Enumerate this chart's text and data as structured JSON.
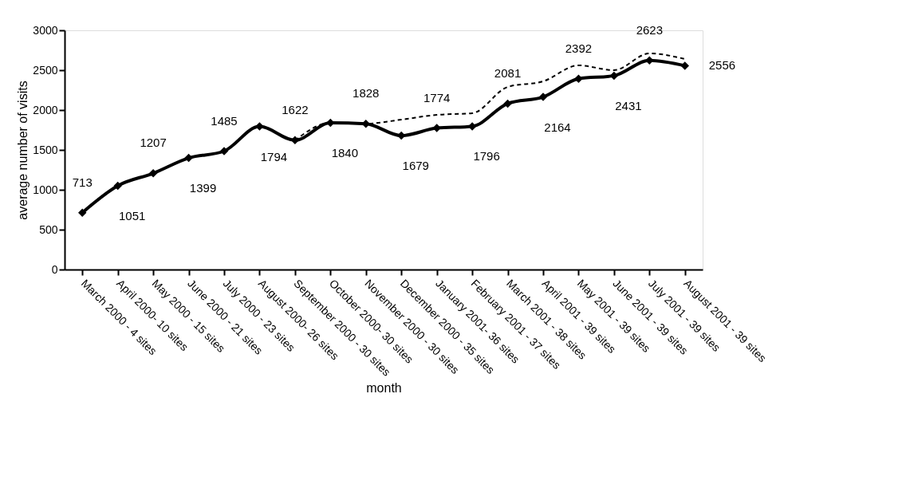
{
  "chart_data": {
    "type": "line",
    "xlabel": "month",
    "ylabel": "average number of visits",
    "categories": [
      "March 2000 - 4 sites",
      "April 2000- 10 sites",
      "May 2000 - 15 sites",
      "June 2000 - 21 sites",
      "July 2000 - 23 sites",
      "August 2000- 26 sites",
      "September 2000 - 30 sites",
      "October 2000- 30 sites",
      "November 2000 - 30 sites",
      "December 2000 - 35 sites",
      "January 2001- 36 sites",
      "February 2001 - 37 sites",
      "March 2001 - 38 sites",
      "April 2001 - 39 sites",
      "May 2001 - 39 sites",
      "June 2001 - 39 sites",
      "July 2001 - 39 sites",
      "August 2001 - 39 sites"
    ],
    "series": [
      {
        "color": "#000000",
        "marker": "none",
        "line_style": "dashed",
        "values": [
          null,
          null,
          null,
          null,
          null,
          null,
          1620,
          1840,
          1830,
          1880,
          1940,
          1960,
          2290,
          2360,
          2560,
          2500,
          2710,
          2640
        ]
      },
      {
        "color": "#000000",
        "marker": "diamond",
        "line_style": "solid",
        "values": [
          713,
          1051,
          1207,
          1399,
          1485,
          1794,
          1622,
          1840,
          1828,
          1679,
          1774,
          1796,
          2081,
          2164,
          2392,
          2431,
          2623,
          2556
        ],
        "value_labels": [
          "713",
          "1051",
          "1207",
          "1399",
          "1485",
          "1794",
          "1622",
          "1840",
          "1828",
          "1679",
          "1774",
          "1796",
          "2081",
          "2164",
          "2392",
          "2431",
          "2623",
          "2556"
        ]
      }
    ],
    "ylim": [
      0,
      3000
    ],
    "yticks": [
      0,
      500,
      1000,
      1500,
      2000,
      2500,
      3000
    ],
    "grid": false
  }
}
